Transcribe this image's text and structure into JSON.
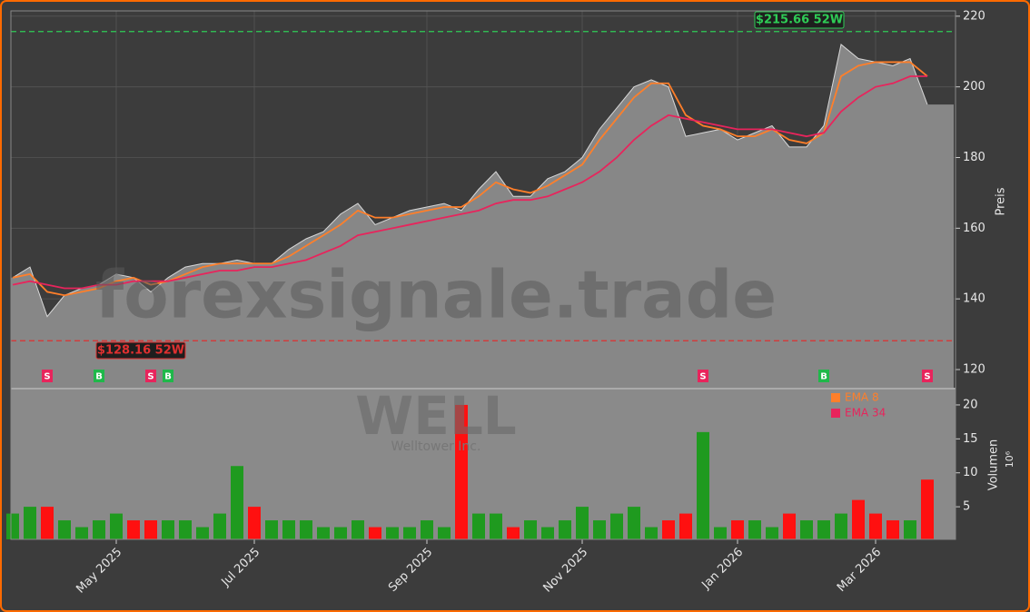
{
  "chart_data": {
    "type": "stock",
    "watermark": "forexsignale.trade",
    "ticker": "WELL",
    "company": "Welltower Inc.",
    "categories": [
      null,
      null,
      null,
      null,
      null,
      null,
      "May 2025",
      null,
      null,
      null,
      null,
      null,
      null,
      null,
      "Jul 2025",
      null,
      null,
      null,
      null,
      null,
      null,
      null,
      null,
      null,
      "Sep 2025",
      null,
      null,
      null,
      null,
      null,
      null,
      null,
      null,
      "Nov 2025",
      null,
      null,
      null,
      null,
      null,
      null,
      null,
      null,
      "Jan 2026",
      null,
      null,
      null,
      null,
      null,
      null,
      null,
      "Mar 2026",
      null,
      null,
      null
    ],
    "close": {
      "color": "#d8d8d8",
      "values": [
        146,
        149,
        135,
        141,
        143,
        144,
        147,
        146,
        142,
        146,
        149,
        150,
        150,
        151,
        150,
        150,
        154,
        157,
        159,
        164,
        167,
        161,
        163,
        165,
        166,
        167,
        165,
        171,
        176,
        169,
        169,
        174,
        176,
        180,
        188,
        194,
        200,
        202,
        200,
        186,
        187,
        188,
        185,
        187,
        189,
        183,
        183,
        189,
        212,
        208,
        207,
        206,
        208,
        195
      ]
    },
    "series": [
      {
        "name": "EMA 8",
        "color": "#ff7f2a",
        "values": [
          146,
          147,
          142,
          141,
          142,
          143,
          145,
          146,
          144,
          145,
          147,
          149,
          150,
          150,
          150,
          150,
          152,
          155,
          158,
          161,
          165,
          163,
          163,
          164,
          165,
          166,
          166,
          169,
          173,
          171,
          170,
          172,
          175,
          178,
          185,
          191,
          197,
          201,
          201,
          192,
          189,
          188,
          186,
          186,
          188,
          185,
          184,
          187,
          203,
          206,
          207,
          207,
          207,
          203
        ]
      },
      {
        "name": "EMA 34",
        "color": "#e8245c",
        "values": [
          144,
          145,
          144,
          143,
          143,
          144,
          144,
          145,
          145,
          145,
          146,
          147,
          148,
          148,
          149,
          149,
          150,
          151,
          153,
          155,
          158,
          159,
          160,
          161,
          162,
          163,
          164,
          165,
          167,
          168,
          168,
          169,
          171,
          173,
          176,
          180,
          185,
          189,
          192,
          191,
          190,
          189,
          188,
          188,
          188,
          187,
          186,
          187,
          193,
          197,
          200,
          201,
          203,
          203
        ]
      }
    ],
    "high_52w": {
      "value": 215.66,
      "label": "$215.66 52W",
      "color": "#2ecc55"
    },
    "low_52w": {
      "value": 128.16,
      "label": "$128.16 52W",
      "color": "#e03030"
    },
    "signals": [
      {
        "label": "S",
        "index": 2,
        "color": "#e8245c"
      },
      {
        "label": "B",
        "index": 5,
        "color": "#1fb84a"
      },
      {
        "label": "S",
        "index": 8,
        "color": "#e8245c"
      },
      {
        "label": "B",
        "index": 9,
        "color": "#1fb84a"
      },
      {
        "label": "S",
        "index": 40,
        "color": "#e8245c"
      },
      {
        "label": "B",
        "index": 47,
        "color": "#1fb84a"
      },
      {
        "label": "S",
        "index": 53,
        "color": "#e8245c"
      }
    ],
    "ylabel": "Preis",
    "ylim": [
      114.6,
      221.5
    ],
    "yticks": [
      120,
      140,
      160,
      180,
      200,
      220
    ],
    "grid": true,
    "volume": {
      "up_color": "#1f9a1f",
      "down_color": "#ff1010",
      "values": [
        4,
        5,
        5,
        3,
        2,
        3,
        4,
        3,
        3,
        3,
        3,
        2,
        4,
        11,
        5,
        3,
        3,
        3,
        2,
        2,
        3,
        2,
        2,
        2,
        3,
        2,
        20,
        4,
        4,
        2,
        3,
        2,
        3,
        5,
        3,
        4,
        5,
        2,
        3,
        4,
        16,
        2,
        3,
        3,
        2,
        4,
        3,
        3,
        4,
        6,
        4,
        3,
        3,
        9
      ]
    },
    "volume_ylabel": "Volumen",
    "volume_unit": "10⁶",
    "volume_ylim": [
      0.2,
      22.4
    ],
    "volume_yticks": [
      5,
      10,
      15,
      20
    ]
  }
}
